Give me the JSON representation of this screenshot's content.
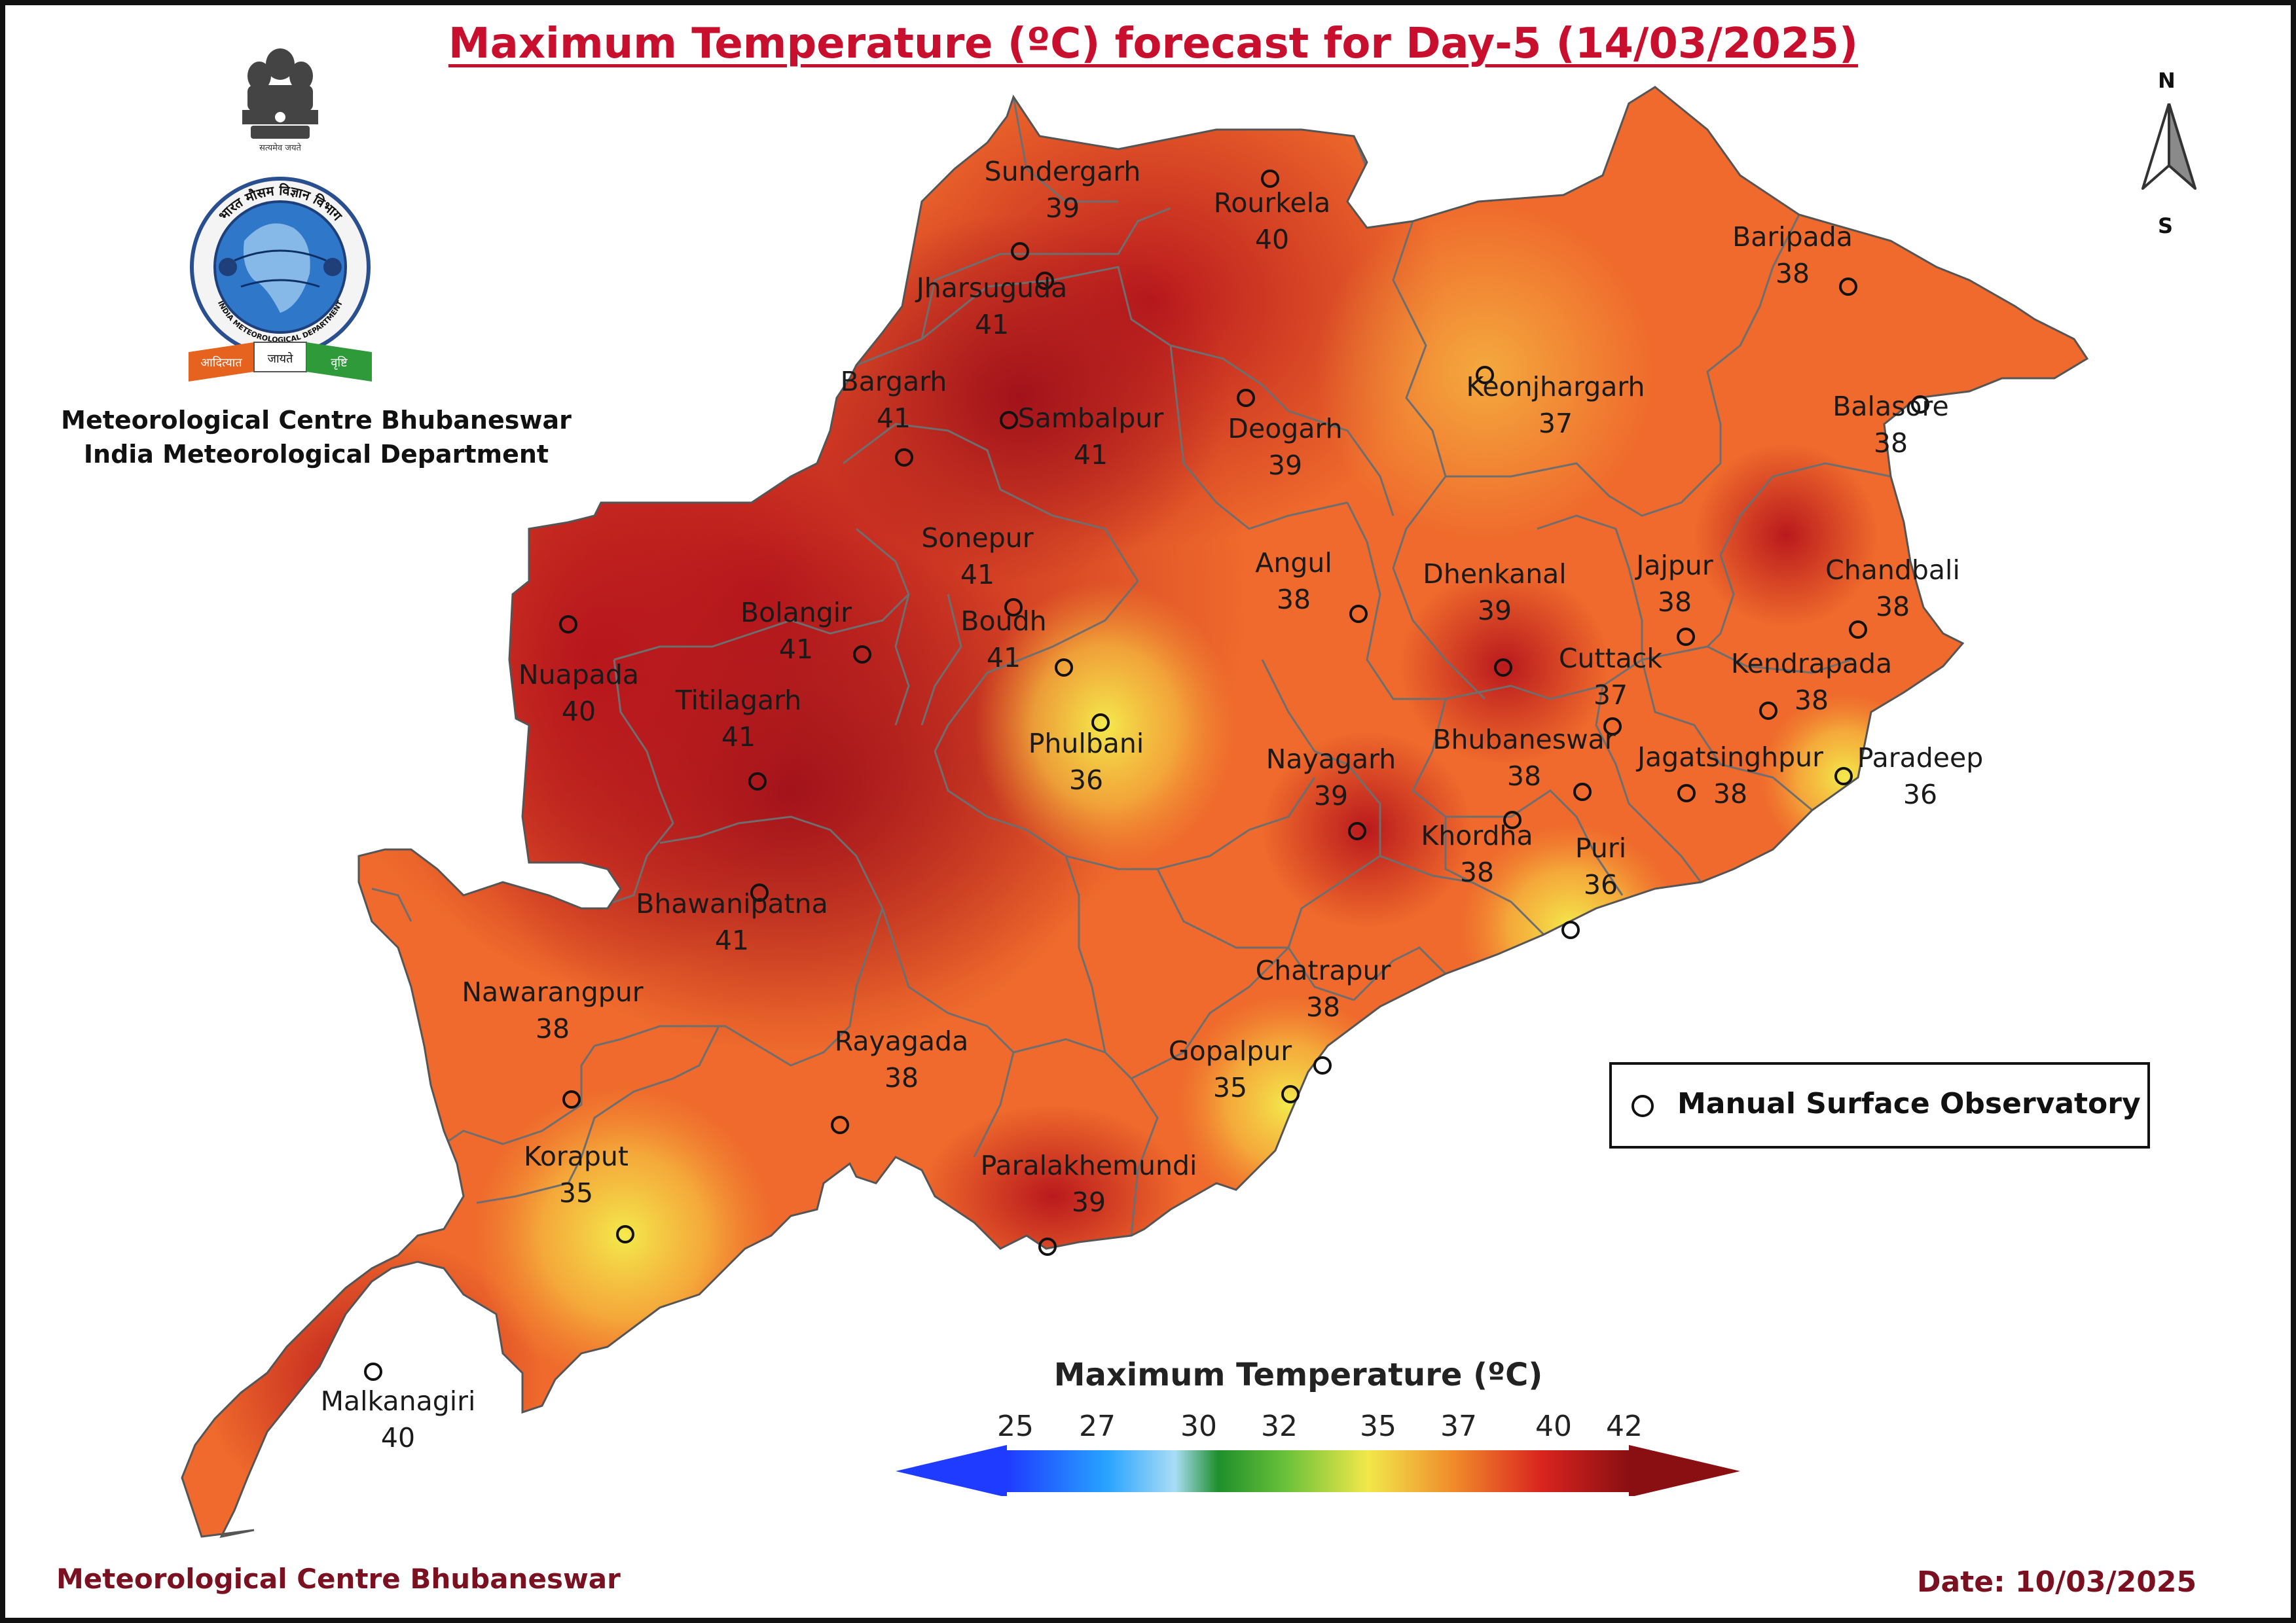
{
  "title": "Maximum Temperature (ºC) forecast for Day-5 (14/03/2025)",
  "organization": {
    "line1": "Meteorological Centre Bhubaneswar",
    "line2": "India Meteorological Department",
    "logo_icon": "imd-emblem-icon",
    "logo_text": [
      "भारत मौसम विज्ञान विभाग",
      "INDIA METEOROLOGICAL DEPARTMENT",
      "आदित्यात जायते वृष्टि"
    ]
  },
  "north_arrow": {
    "n": "N",
    "s": "S",
    "icon": "north-arrow-icon"
  },
  "legend": {
    "marker_icon": "observatory-circle-icon",
    "label": "Manual Surface Observatory"
  },
  "colorbar": {
    "title": "Maximum Temperature (ºC)",
    "ticks": [
      "25",
      "27",
      "30",
      "32",
      "35",
      "37",
      "40",
      "42"
    ],
    "colors": [
      "#1f3bff",
      "#27a3ff",
      "#a9ddf5",
      "#1e8f2a",
      "#6cc23a",
      "#f2e84a",
      "#f08a2a",
      "#d9241f",
      "#8a0f12"
    ]
  },
  "stations": [
    {
      "name": "Sundergarh",
      "temp": "39"
    },
    {
      "name": "Rourkela",
      "temp": "40"
    },
    {
      "name": "Jharsuguda",
      "temp": "41"
    },
    {
      "name": "Baripada",
      "temp": "38"
    },
    {
      "name": "Bargarh",
      "temp": "41"
    },
    {
      "name": "Sambalpur",
      "temp": "41"
    },
    {
      "name": "Deogarh",
      "temp": "39"
    },
    {
      "name": "Keonjhargarh",
      "temp": "37"
    },
    {
      "name": "Balasore",
      "temp": "38"
    },
    {
      "name": "Sonepur",
      "temp": "41"
    },
    {
      "name": "Angul",
      "temp": "38"
    },
    {
      "name": "Dhenkanal",
      "temp": "39"
    },
    {
      "name": "Jajpur",
      "temp": "38"
    },
    {
      "name": "Chandbali",
      "temp": "38"
    },
    {
      "name": "Bolangir",
      "temp": "41"
    },
    {
      "name": "Boudh",
      "temp": "41"
    },
    {
      "name": "Nuapada",
      "temp": "40"
    },
    {
      "name": "Cuttack",
      "temp": "37"
    },
    {
      "name": "Kendrapada",
      "temp": "38"
    },
    {
      "name": "Titilagarh",
      "temp": "41"
    },
    {
      "name": "Phulbani",
      "temp": "36"
    },
    {
      "name": "Nayagarh",
      "temp": "39"
    },
    {
      "name": "Bhubaneswar",
      "temp": "38"
    },
    {
      "name": "Jagatsinghpur",
      "temp": "38"
    },
    {
      "name": "Paradeep",
      "temp": "36"
    },
    {
      "name": "Khordha",
      "temp": "38"
    },
    {
      "name": "Puri",
      "temp": "36"
    },
    {
      "name": "Bhawanipatna",
      "temp": "41"
    },
    {
      "name": "Nawarangpur",
      "temp": "38"
    },
    {
      "name": "Chatrapur",
      "temp": "38"
    },
    {
      "name": "Rayagada",
      "temp": "38"
    },
    {
      "name": "Gopalpur",
      "temp": "35"
    },
    {
      "name": "Koraput",
      "temp": "35"
    },
    {
      "name": "Paralakhemundi",
      "temp": "39"
    },
    {
      "name": "Malkanagiri",
      "temp": "40"
    }
  ],
  "footer": {
    "left": "Meteorological Centre Bhubaneswar",
    "right": "Date: 10/03/2025"
  }
}
